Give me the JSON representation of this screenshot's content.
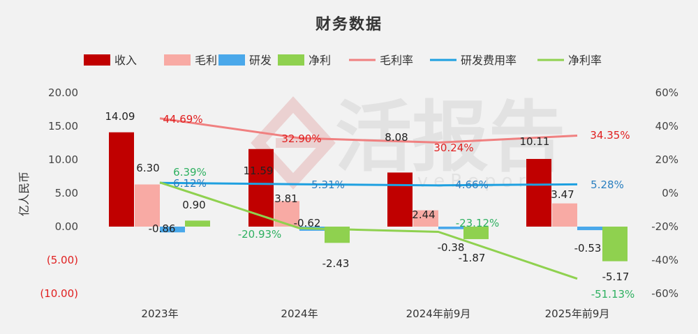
{
  "chart_data": {
    "type": "bar",
    "title": "财务数据",
    "ylabel": "亿人民币",
    "categories": [
      "2023年",
      "2024年",
      "2024年前9月",
      "2025年前9月"
    ],
    "ylim": [
      -10,
      20
    ],
    "yticks": [
      "20.00",
      "15.00",
      "10.00",
      "5.00",
      "0.00",
      "(5.00)",
      "(10.00)"
    ],
    "y2lim": [
      -60,
      60
    ],
    "y2ticks": [
      "60%",
      "40%",
      "20%",
      "0%",
      "-20%",
      "-40%",
      "-60%"
    ],
    "legend_position": "top",
    "series": [
      {
        "name": "收入",
        "kind": "bar",
        "color": "#c00000",
        "values": [
          14.09,
          11.59,
          8.08,
          10.11
        ],
        "labels": [
          "14.09",
          "11.59",
          "8.08",
          "10.11"
        ]
      },
      {
        "name": "毛利",
        "kind": "bar",
        "color": "#f8aaa4",
        "values": [
          6.3,
          3.81,
          2.44,
          3.47
        ],
        "labels": [
          "6.30",
          "3.81",
          "2.44",
          "3.47"
        ]
      },
      {
        "name": "研发",
        "kind": "bar",
        "color": "#4aa8ea",
        "values": [
          -0.86,
          -0.62,
          -0.38,
          -0.53
        ],
        "labels": [
          "-0.86",
          "-0.62",
          "-0.38",
          "-0.53"
        ]
      },
      {
        "name": "净利",
        "kind": "bar",
        "color": "#8fd14f",
        "values": [
          0.9,
          -2.43,
          -1.87,
          -5.17
        ],
        "labels": [
          "0.90",
          "-2.43",
          "-1.87",
          "-5.17"
        ]
      },
      {
        "name": "毛利率",
        "kind": "line",
        "axis": "right",
        "color": "#f08080",
        "values": [
          44.69,
          32.9,
          30.24,
          34.35
        ],
        "labels": [
          "44.69%",
          "32.90%",
          "30.24%",
          "34.35%"
        ]
      },
      {
        "name": "研发费用率",
        "kind": "line",
        "axis": "right",
        "color": "#1ea0e0",
        "values": [
          6.12,
          5.31,
          4.66,
          5.28
        ],
        "labels": [
          "6.12%",
          "5.31%",
          "4.66%",
          "5.28%"
        ]
      },
      {
        "name": "净利率",
        "kind": "line",
        "axis": "right",
        "color": "#8fd14f",
        "values": [
          6.39,
          -20.93,
          -23.12,
          -51.13
        ],
        "labels": [
          "6.39%",
          "-20.93%",
          "-23.12%",
          "-51.13%"
        ]
      }
    ]
  },
  "watermark": {
    "text": "活报告",
    "subtext": "LiveReport"
  }
}
